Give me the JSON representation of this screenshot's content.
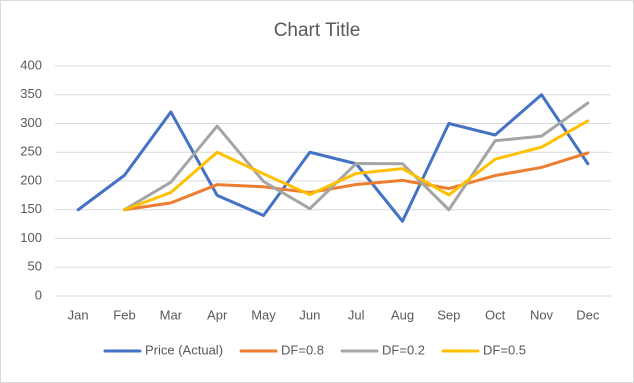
{
  "chart_data": {
    "type": "line",
    "title": "Chart Title",
    "categories": [
      "Jan",
      "Feb",
      "Mar",
      "Apr",
      "May",
      "Jun",
      "Jul",
      "Aug",
      "Sep",
      "Oct",
      "Nov",
      "Dec"
    ],
    "series": [
      {
        "name": "Price (Actual)",
        "color": "#4472c4",
        "values": [
          150,
          210,
          320,
          175,
          140,
          250,
          230,
          130,
          300,
          280,
          350,
          230
        ]
      },
      {
        "name": "DF=0.8",
        "color": "#ed7d31",
        "values": [
          null,
          150,
          162,
          193.6,
          189.9,
          179.9,
          193.9,
          201.1,
          186.9,
          209.5,
          223.6,
          248.9
        ]
      },
      {
        "name": "DF=0.2",
        "color": "#a5a5a5",
        "values": [
          null,
          150,
          198,
          295.6,
          199.1,
          151.8,
          230.4,
          230.1,
          150,
          270,
          278,
          335.6
        ]
      },
      {
        "name": "DF=0.5",
        "color": "#ffc000",
        "values": [
          null,
          150,
          180,
          250,
          212.5,
          176.3,
          213.1,
          221.6,
          175.8,
          237.9,
          258.9,
          304.5
        ]
      }
    ],
    "ylim": [
      0,
      400
    ],
    "yticks": [
      0,
      50,
      100,
      150,
      200,
      250,
      300,
      350,
      400
    ],
    "grid": true,
    "legend": "bottom"
  }
}
